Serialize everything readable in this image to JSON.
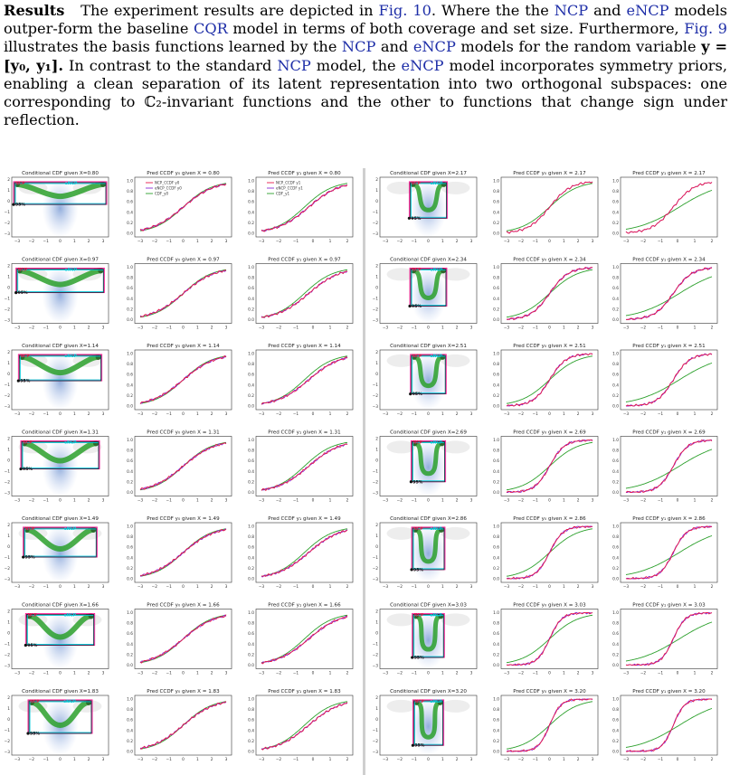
{
  "paragraph": {
    "heading": "Results",
    "s1_a": "The experiment results are depicted in",
    "s1_ref": "Fig. 10",
    "s1_b": ". Where the",
    "ncp": "NCP",
    "and": "and",
    "encp": "eNCP",
    "s1_c": "models outper-form the baseline",
    "cqr": "CQR",
    "s1_d": "model in terms of both coverage and set size. Furthermore,",
    "s2_ref": "Fig. 9",
    "s2_a": "illustrates the basis functions learned by the",
    "s2_b": "models for the random variable",
    "var_eq": "y = [y₀, y₁].",
    "s3_a": "In contrast to the standard",
    "s3_b": "model, the",
    "s3_c": "model incorporates symmetry priors, enabling a clean separation of its latent representation into two orthogonal subspaces: one corresponding to",
    "c2": "ℂ₂",
    "s3_d": "-invariant functions and the other to functions that change sign under reflection."
  },
  "figure": {
    "legend": [
      "NCP_CCDF y0",
      "eNCP_CCDF y0",
      "CDF_y0"
    ],
    "legend_y1": [
      "NCP_CCDF y1",
      "eNCP_CCDF y1",
      "CDF_y1"
    ],
    "labels": {
      "ncp": "NCP",
      "encp": "eNCP",
      "cov": "95%"
    },
    "x_ticks_cond": [
      "−3",
      "−2",
      "−1",
      "0",
      "1",
      "2",
      "3"
    ],
    "y_ticks_cond": [
      "2",
      "1",
      "0",
      "−1",
      "−2",
      "−3"
    ],
    "x_ticks_cdf": [
      "−3",
      "−2",
      "−1",
      "0",
      "1",
      "2",
      "3"
    ],
    "x_ticks_cdf1": [
      "−3",
      "−2",
      "−1",
      "0",
      "1",
      "2"
    ],
    "y_ticks_cdf": [
      "0.0",
      "0.2",
      "0.4",
      "0.6",
      "0.8",
      "1.0"
    ],
    "colors": {
      "ncp": "#e6194b",
      "encp": "#8a2bd6",
      "cdf": "#2ca02c",
      "ncp_box": "#ff1493",
      "encp_box": "#00c8d8",
      "dist": "#b0c4e8"
    },
    "left_column_x": [
      "0.80",
      "0.97",
      "1.14",
      "1.31",
      "1.49",
      "1.66",
      "1.83"
    ],
    "right_column_x": [
      "2.17",
      "2.34",
      "2.51",
      "2.69",
      "2.86",
      "3.03",
      "3.20"
    ],
    "title_cond": "Conditional CDF given X=",
    "title_y0": "Pred CCDF y₀ given X = ",
    "title_y1": "Pred CCDF y₁ given X = "
  }
}
